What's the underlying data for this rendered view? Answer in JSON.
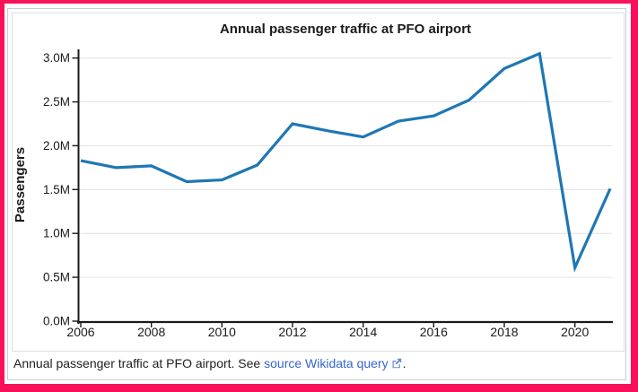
{
  "colors": {
    "highlight": "#f8115a",
    "frame_border": "#c8ccd1",
    "chart_border": "#dddfe3",
    "grid": "#e0e0e0",
    "axis": "#1a1a1a",
    "axis_text": "#1a1a1a",
    "caption_text": "#202122",
    "link": "#3366cc",
    "line": "#1f77b4"
  },
  "chart_data": {
    "type": "line",
    "title": "Annual passenger traffic at PFO airport",
    "ylabel": "Passengers",
    "xlabel": "",
    "x": [
      2006,
      2007,
      2008,
      2009,
      2010,
      2011,
      2012,
      2013,
      2014,
      2015,
      2016,
      2017,
      2018,
      2019,
      2020,
      2021
    ],
    "series": [
      {
        "name": "Passengers (millions)",
        "values": [
          1.83,
          1.75,
          1.77,
          1.59,
          1.61,
          1.78,
          2.25,
          2.17,
          2.1,
          2.28,
          2.34,
          2.52,
          2.88,
          3.05,
          0.61,
          1.51
        ]
      }
    ],
    "unit": "millions of passengers",
    "x_tick_values": [
      2006,
      2008,
      2010,
      2012,
      2014,
      2016,
      2018,
      2020
    ],
    "x_tick_labels": [
      "2006",
      "2008",
      "2010",
      "2012",
      "2014",
      "2016",
      "2018",
      "2020"
    ],
    "y_tick_values": [
      0,
      0.5,
      1.0,
      1.5,
      2.0,
      2.5,
      3.0
    ],
    "y_tick_labels": [
      "0.0M",
      "0.5M",
      "1.0M",
      "1.5M",
      "2.0M",
      "2.5M",
      "3.0M"
    ],
    "xlim": [
      2006,
      2021
    ],
    "ylim": [
      0,
      3.15
    ],
    "grid": "horizontal",
    "legend": "none",
    "line_color": "#1f77b4"
  },
  "caption": {
    "prefix": "Annual passenger traffic at PFO airport. See ",
    "link_text": "source Wikidata query",
    "suffix": ".",
    "icon": "external-link-icon"
  }
}
